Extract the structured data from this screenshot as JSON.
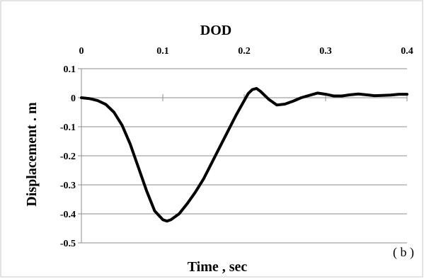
{
  "chart_data": {
    "type": "line",
    "title": "DOD",
    "xlabel": "Time , sec",
    "ylabel": "Displacement . m",
    "panel_label": "( b )",
    "xlim": [
      0,
      0.4
    ],
    "ylim": [
      -0.5,
      0.1
    ],
    "x_ticks": [
      0,
      0.1,
      0.2,
      0.3,
      0.4
    ],
    "x_tick_labels": [
      "0",
      "0.1",
      "0.2",
      "0.3",
      "0.4"
    ],
    "y_ticks": [
      0.1,
      0,
      -0.1,
      -0.2,
      -0.3,
      -0.4,
      -0.5
    ],
    "y_tick_labels": [
      "0.1",
      "0",
      "-0.1",
      "-0.2",
      "-0.3",
      "-0.4",
      "-0.5"
    ],
    "x_axis_position": "top",
    "grid": "horizontal",
    "line_color": "#000000",
    "series": [
      {
        "x": [
          0,
          0.01,
          0.02,
          0.03,
          0.04,
          0.05,
          0.06,
          0.07,
          0.08,
          0.09,
          0.1,
          0.105,
          0.11,
          0.12,
          0.13,
          0.14,
          0.15,
          0.16,
          0.17,
          0.18,
          0.19,
          0.2,
          0.205,
          0.21,
          0.215,
          0.22,
          0.23,
          0.24,
          0.25,
          0.26,
          0.27,
          0.28,
          0.29,
          0.3,
          0.31,
          0.32,
          0.33,
          0.34,
          0.35,
          0.36,
          0.37,
          0.38,
          0.39,
          0.4
        ],
        "y": [
          0,
          -0.003,
          -0.01,
          -0.023,
          -0.05,
          -0.095,
          -0.16,
          -0.24,
          -0.32,
          -0.39,
          -0.42,
          -0.425,
          -0.42,
          -0.4,
          -0.365,
          -0.325,
          -0.28,
          -0.225,
          -0.17,
          -0.115,
          -0.06,
          -0.01,
          0.015,
          0.028,
          0.032,
          0.022,
          -0.005,
          -0.025,
          -0.022,
          -0.012,
          0.0,
          0.008,
          0.016,
          0.012,
          0.006,
          0.006,
          0.01,
          0.013,
          0.01,
          0.007,
          0.008,
          0.009,
          0.012,
          0.012
        ]
      }
    ]
  }
}
